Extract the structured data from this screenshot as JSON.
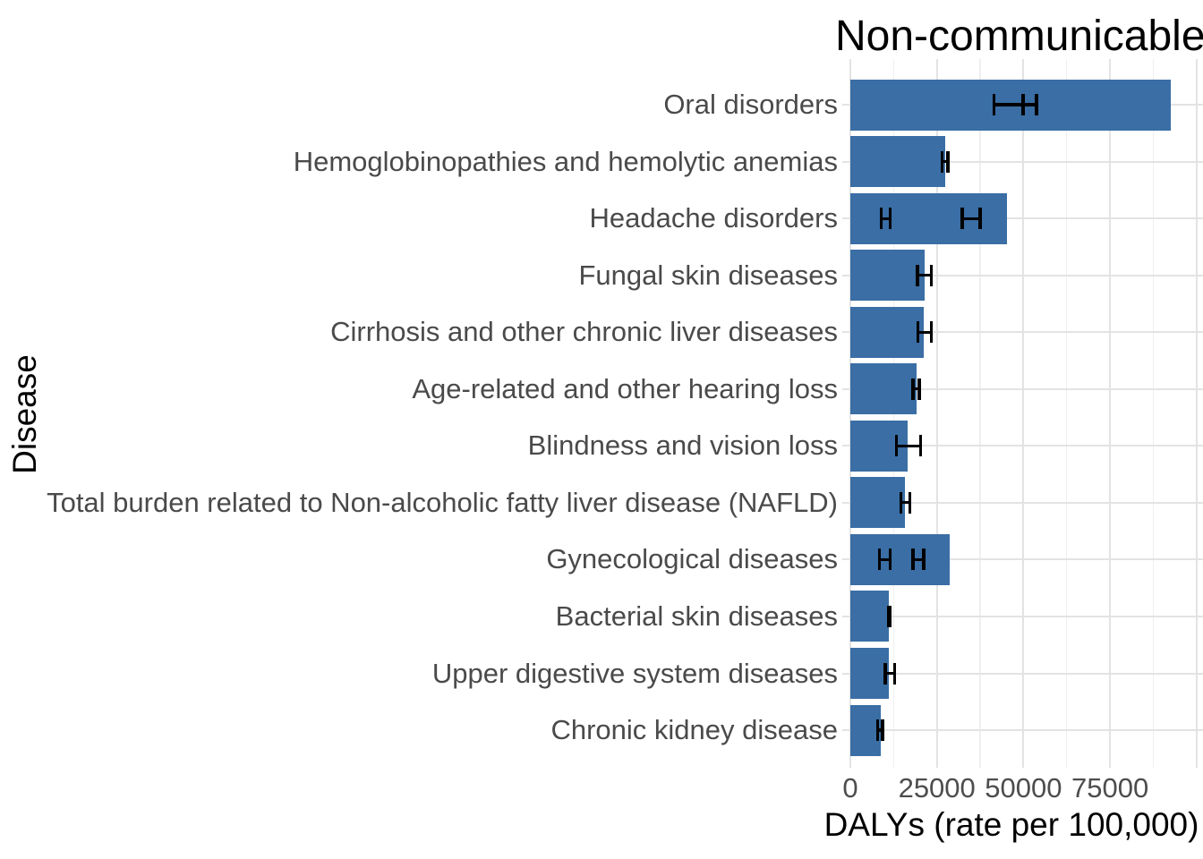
{
  "title": "Non-communicable diseases",
  "chart_data": {
    "type": "bar",
    "orientation": "horizontal",
    "title": "Non-communicable diseases",
    "xlabel": "DALYs (rate per 100,000)",
    "ylabel": "Disease",
    "x_tick_labels": [
      "0",
      "25000",
      "50000",
      "75000"
    ],
    "x_tick_values": [
      0,
      25000,
      50000,
      75000
    ],
    "x_major_gridlines": [
      0,
      25000,
      50000,
      75000,
      100000
    ],
    "x_minor_gridlines": [
      12500,
      37500,
      62500,
      87500
    ],
    "xlim": [
      0,
      101900
    ],
    "grid": true,
    "legend": "none",
    "categories": [
      "Oral disorders",
      "Hemoglobinopathies and hemolytic anemias",
      "Headache disorders",
      "Fungal skin diseases",
      "Cirrhosis and other chronic liver diseases",
      "Age-related and other hearing loss",
      "Blindness and vision loss",
      "Total burden related to Non-alcoholic fatty liver disease (NAFLD)",
      "Gynecological diseases",
      "Bacterial skin diseases",
      "Upper digestive system diseases",
      "Chronic kidney disease"
    ],
    "values": [
      92500,
      27400,
      45200,
      21500,
      21200,
      19100,
      16500,
      15800,
      28700,
      11200,
      11100,
      8800
    ],
    "error_bars": [
      [
        [
          41400,
          49900
        ],
        [
          49900,
          53800
        ]
      ],
      [
        [
          26400,
          28200
        ]
      ],
      [
        [
          9000,
          11600
        ],
        [
          32300,
          37500
        ]
      ],
      [
        [
          19400,
          23500
        ]
      ],
      [
        [
          19600,
          23300
        ]
      ],
      [
        [
          18100,
          19900
        ]
      ],
      [
        [
          13400,
          20200
        ]
      ],
      [
        [
          14700,
          17100
        ]
      ],
      [
        [
          8500,
          11600
        ],
        [
          18100,
          21200
        ]
      ],
      [
        [
          10900,
          11400
        ]
      ],
      [
        [
          10100,
          12700
        ]
      ],
      [
        [
          7800,
          9300
        ]
      ]
    ],
    "bar_color": "#3a6ea5",
    "error_bar_color": "#000000"
  },
  "colors": {
    "background": "#ffffff",
    "grid_major": "#e3e3e3",
    "grid_minor": "#efefef",
    "axis_text": "#4d4d4d",
    "title_text": "#000000"
  }
}
